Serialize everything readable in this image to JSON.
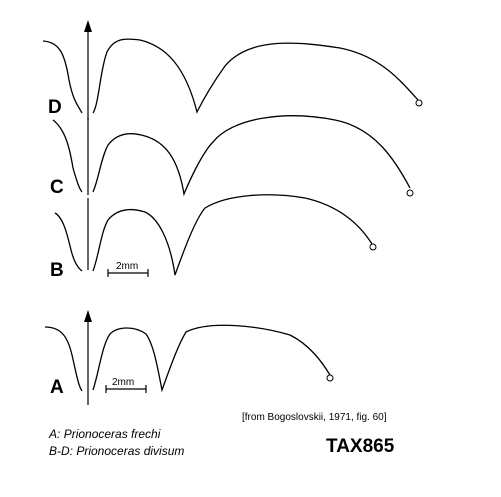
{
  "sutures": [
    {
      "id": "D",
      "label": "D"
    },
    {
      "id": "C",
      "label": "C"
    },
    {
      "id": "B",
      "label": "B",
      "scale_bar": "2mm"
    },
    {
      "id": "A",
      "label": "A",
      "scale_bar": "2mm"
    }
  ],
  "legend": {
    "a_prefix": "A:",
    "a_species": "Prionoceras frechi",
    "bd_prefix": "B-D:",
    "bd_species": "Prionoceras divisum"
  },
  "source": "[from Bogoslovskii, 1971, fig. 60]",
  "tag": "TAX865",
  "colors": {
    "line": "#000000",
    "background": "#ffffff"
  },
  "icons": {
    "axis_arrow": "up-arrow-icon",
    "end_mark": "circle-icon"
  }
}
